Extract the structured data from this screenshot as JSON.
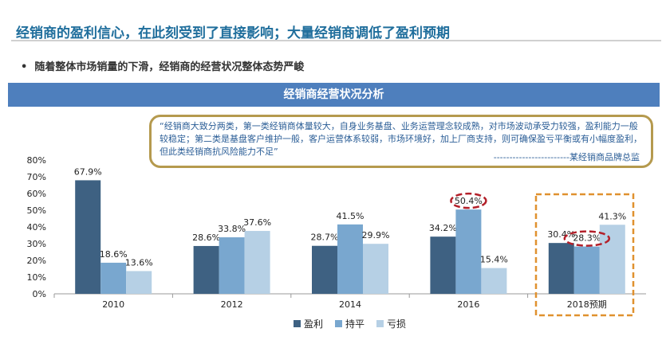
{
  "title": "经销商的盈利信心，在此刻受到了直接影响；大量经销商调低了盈利预期",
  "bullet": "随着整体市场销量的下滑，经销商的经营状况整体态势严峻",
  "band_title": "经销商经营状况分析",
  "quote": "“经销商大致分两类，第一类经销商体量较大，自身业务基盘、业务运营理念较成熟，对市场波动承受力较强，盈利能力一般较稳定；第二类是基盘客户维护一般，客户运营体系较弱，市场环境好，加上厂商支持，则可确保盈亏平衡或有小幅度盈利，但此类经销商抗风险能力不足”",
  "quote_source": "------------------------某经销商品牌总监",
  "chart_data": {
    "type": "bar",
    "categories": [
      "2010",
      "2012",
      "2014",
      "2016",
      "2018预期"
    ],
    "series": [
      {
        "name": "盈利",
        "color": "#3e6182",
        "values": [
          67.9,
          28.6,
          28.7,
          34.2,
          30.4
        ]
      },
      {
        "name": "持平",
        "color": "#79a7cf",
        "values": [
          18.6,
          33.8,
          41.5,
          50.4,
          28.3
        ]
      },
      {
        "name": "亏损",
        "color": "#b6d0e5",
        "values": [
          13.6,
          37.6,
          29.9,
          15.4,
          41.3
        ]
      }
    ],
    "ylim": [
      0,
      80
    ],
    "yticks": [
      "0%",
      "10%",
      "20%",
      "30%",
      "40%",
      "50%",
      "60%",
      "70%",
      "80%"
    ],
    "legend": "bottom",
    "highlights": [
      "2016 持平 50.4%",
      "2018预期 持平 28.3%"
    ]
  }
}
